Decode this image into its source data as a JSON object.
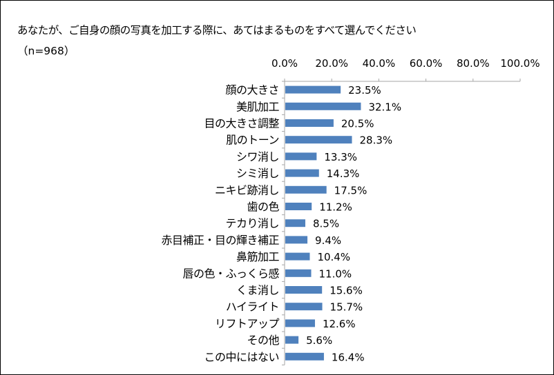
{
  "chart_data": {
    "type": "bar",
    "orientation": "horizontal",
    "title": "あなたが、ご自身の顔の写真を加工する際に、あてはまるものをすべて選んでください",
    "subtitle": "（n=968）",
    "categories": [
      "顔の大きさ",
      "美肌加工",
      "目の大きさ調整",
      "肌のトーン",
      "シワ消し",
      "シミ消し",
      "ニキビ跡消し",
      "歯の色",
      "テカり消し",
      "赤目補正・目の輝き補正",
      "鼻筋加工",
      "唇の色・ふっくら感",
      "くま消し",
      "ハイライト",
      "リフトアップ",
      "その他",
      "この中にはない"
    ],
    "values": [
      23.5,
      32.1,
      20.5,
      28.3,
      13.3,
      14.3,
      17.5,
      11.2,
      8.5,
      9.4,
      10.4,
      11.0,
      15.6,
      15.7,
      12.6,
      5.6,
      16.4
    ],
    "value_labels": [
      "23.5%",
      "32.1%",
      "20.5%",
      "28.3%",
      "13.3%",
      "14.3%",
      "17.5%",
      "11.2%",
      "8.5%",
      "9.4%",
      "10.4%",
      "11.0%",
      "15.6%",
      "15.7%",
      "12.6%",
      "5.6%",
      "16.4%"
    ],
    "x_ticks": [
      0,
      20,
      40,
      60,
      80,
      100
    ],
    "x_tick_labels": [
      "0.0%",
      "20.0%",
      "40.0%",
      "60.0%",
      "80.0%",
      "100.0%"
    ],
    "xlim": [
      0,
      100
    ],
    "x_axis_position": "top",
    "grid": false,
    "legend": "none",
    "bar_color": "#4f81bd",
    "axis_color": "#a6a6a6"
  }
}
